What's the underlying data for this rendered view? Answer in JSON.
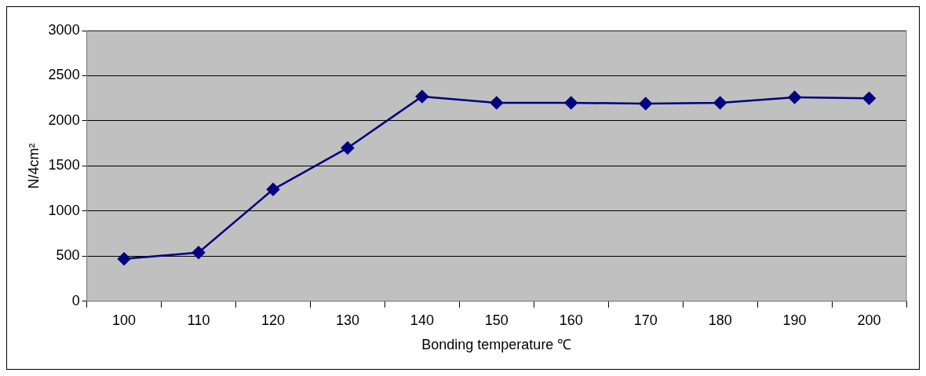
{
  "chart_data": {
    "type": "line",
    "xlabel": "Bonding temperature ℃",
    "ylabel": "N/4cm²",
    "categories": [
      "100",
      "110",
      "120",
      "130",
      "140",
      "150",
      "160",
      "170",
      "180",
      "190",
      "200"
    ],
    "series": [
      {
        "color": "#000080",
        "values": [
          470,
          540,
          1240,
          1700,
          2270,
          2200,
          2200,
          2190,
          2200,
          2260,
          2250
        ]
      }
    ],
    "ylim": [
      0,
      3000
    ],
    "yticks": [
      0,
      500,
      1000,
      1500,
      2000,
      2500,
      3000
    ],
    "grid": "y",
    "legend": false,
    "marker": "diamond",
    "line_style": "solid"
  }
}
